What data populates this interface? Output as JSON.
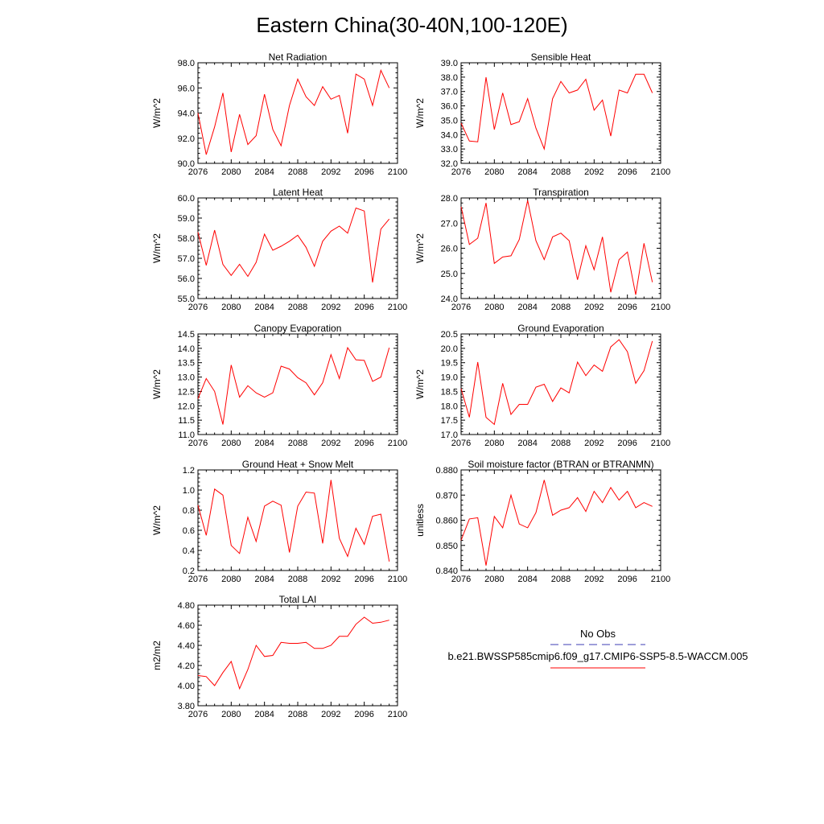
{
  "figure": {
    "title": "Eastern China(30-40N,100-120E)"
  },
  "colors": {
    "model_line": "#ff0000",
    "obs_line": "#3c3cb4",
    "axis": "#000000"
  },
  "legend": {
    "obs_label": "No Obs",
    "model_label": "b.e21.BWSSP585cmip6.f09_g17.CMIP6-SSP5-8.5-WACCM.005"
  },
  "chart_data": [
    {
      "type": "line",
      "title": "Net Radiation",
      "ylabel": "W/m^2",
      "xlim": [
        2076,
        2100
      ],
      "xticks": [
        "2076",
        "2080",
        "2084",
        "2088",
        "2092",
        "2096",
        "2100"
      ],
      "ylim": [
        90,
        98
      ],
      "yticks": [
        "90.0",
        "92.0",
        "94.0",
        "96.0",
        "98.0"
      ],
      "x": [
        2076,
        2077,
        2078,
        2079,
        2080,
        2081,
        2082,
        2083,
        2084,
        2085,
        2086,
        2087,
        2088,
        2089,
        2090,
        2091,
        2092,
        2093,
        2094,
        2095,
        2096,
        2097,
        2098,
        2099
      ],
      "series": [
        {
          "name": "b.e21.BWSSP585cmip6.f09_g17.CMIP6-SSP5-8.5-WACCM.005",
          "values": [
            94.0,
            90.7,
            92.9,
            95.6,
            90.9,
            93.9,
            91.5,
            92.2,
            95.5,
            92.7,
            91.4,
            94.6,
            96.7,
            95.3,
            94.6,
            96.1,
            95.1,
            95.4,
            92.4,
            97.1,
            96.7,
            94.6,
            97.4,
            96.0
          ]
        }
      ]
    },
    {
      "type": "line",
      "title": "Sensible Heat",
      "ylabel": "W/m^2",
      "xlim": [
        2076,
        2100
      ],
      "xticks": [
        "2076",
        "2080",
        "2084",
        "2088",
        "2092",
        "2096",
        "2100"
      ],
      "ylim": [
        32,
        39
      ],
      "yticks": [
        "32.0",
        "33.0",
        "34.0",
        "35.0",
        "36.0",
        "37.0",
        "38.0",
        "39.0"
      ],
      "x": [
        2076,
        2077,
        2078,
        2079,
        2080,
        2081,
        2082,
        2083,
        2084,
        2085,
        2086,
        2087,
        2088,
        2089,
        2090,
        2091,
        2092,
        2093,
        2094,
        2095,
        2096,
        2097,
        2098,
        2099
      ],
      "series": [
        {
          "name": "b.e21.BWSSP585cmip6.f09_g17.CMIP6-SSP5-8.5-WACCM.005",
          "values": [
            34.8,
            33.55,
            33.5,
            38.0,
            34.35,
            36.9,
            34.7,
            34.9,
            36.5,
            34.45,
            33.0,
            36.5,
            37.7,
            36.9,
            37.1,
            37.85,
            35.7,
            36.4,
            33.9,
            37.1,
            36.9,
            38.2,
            38.2,
            36.9
          ]
        }
      ]
    },
    {
      "type": "line",
      "title": "Latent Heat",
      "ylabel": "W/m^2",
      "xlim": [
        2076,
        2100
      ],
      "xticks": [
        "2076",
        "2080",
        "2084",
        "2088",
        "2092",
        "2096",
        "2100"
      ],
      "ylim": [
        55,
        60
      ],
      "yticks": [
        "55.0",
        "56.0",
        "57.0",
        "58.0",
        "59.0",
        "60.0"
      ],
      "x": [
        2076,
        2077,
        2078,
        2079,
        2080,
        2081,
        2082,
        2083,
        2084,
        2085,
        2086,
        2087,
        2088,
        2089,
        2090,
        2091,
        2092,
        2093,
        2094,
        2095,
        2096,
        2097,
        2098,
        2099
      ],
      "series": [
        {
          "name": "b.e21.BWSSP585cmip6.f09_g17.CMIP6-SSP5-8.5-WACCM.005",
          "values": [
            58.3,
            56.65,
            58.4,
            56.7,
            56.15,
            56.7,
            56.1,
            56.8,
            58.2,
            57.4,
            57.6,
            57.85,
            58.15,
            57.55,
            56.6,
            57.85,
            58.35,
            58.6,
            58.25,
            59.5,
            59.35,
            55.8,
            58.45,
            58.95
          ]
        }
      ]
    },
    {
      "type": "line",
      "title": "Transpiration",
      "ylabel": "W/m^2",
      "xlim": [
        2076,
        2100
      ],
      "xticks": [
        "2076",
        "2080",
        "2084",
        "2088",
        "2092",
        "2096",
        "2100"
      ],
      "ylim": [
        24,
        28
      ],
      "yticks": [
        "24.0",
        "25.0",
        "26.0",
        "27.0",
        "28.0"
      ],
      "x": [
        2076,
        2077,
        2078,
        2079,
        2080,
        2081,
        2082,
        2083,
        2084,
        2085,
        2086,
        2087,
        2088,
        2089,
        2090,
        2091,
        2092,
        2093,
        2094,
        2095,
        2096,
        2097,
        2098,
        2099
      ],
      "series": [
        {
          "name": "b.e21.BWSSP585cmip6.f09_g17.CMIP6-SSP5-8.5-WACCM.005",
          "values": [
            27.65,
            26.15,
            26.4,
            27.8,
            25.4,
            25.65,
            25.7,
            26.35,
            27.9,
            26.3,
            25.55,
            26.45,
            26.6,
            26.3,
            24.75,
            26.1,
            25.15,
            26.45,
            24.25,
            25.55,
            25.85,
            24.15,
            26.2,
            24.65
          ]
        }
      ]
    },
    {
      "type": "line",
      "title": "Canopy Evaporation",
      "ylabel": "W/m^2",
      "xlim": [
        2076,
        2100
      ],
      "xticks": [
        "2076",
        "2080",
        "2084",
        "2088",
        "2092",
        "2096",
        "2100"
      ],
      "ylim": [
        11,
        14.5
      ],
      "yticks": [
        "11.0",
        "11.5",
        "12.0",
        "12.5",
        "13.0",
        "13.5",
        "14.0",
        "14.5"
      ],
      "x": [
        2076,
        2077,
        2078,
        2079,
        2080,
        2081,
        2082,
        2083,
        2084,
        2085,
        2086,
        2087,
        2088,
        2089,
        2090,
        2091,
        2092,
        2093,
        2094,
        2095,
        2096,
        2097,
        2098,
        2099
      ],
      "series": [
        {
          "name": "b.e21.BWSSP585cmip6.f09_g17.CMIP6-SSP5-8.5-WACCM.005",
          "values": [
            12.25,
            12.95,
            12.5,
            11.35,
            13.42,
            12.3,
            12.7,
            12.45,
            12.3,
            12.45,
            13.38,
            13.28,
            12.98,
            12.8,
            12.38,
            12.8,
            13.78,
            12.95,
            14.02,
            13.6,
            13.58,
            12.85,
            13.0,
            14.02
          ]
        }
      ]
    },
    {
      "type": "line",
      "title": "Ground Evaporation",
      "ylabel": "W/m^2",
      "xlim": [
        2076,
        2100
      ],
      "xticks": [
        "2076",
        "2080",
        "2084",
        "2088",
        "2092",
        "2096",
        "2100"
      ],
      "ylim": [
        17,
        20.5
      ],
      "yticks": [
        "17.0",
        "17.5",
        "18.0",
        "18.5",
        "19.0",
        "19.5",
        "20.0",
        "20.5"
      ],
      "x": [
        2076,
        2077,
        2078,
        2079,
        2080,
        2081,
        2082,
        2083,
        2084,
        2085,
        2086,
        2087,
        2088,
        2089,
        2090,
        2091,
        2092,
        2093,
        2094,
        2095,
        2096,
        2097,
        2098,
        2099
      ],
      "series": [
        {
          "name": "b.e21.BWSSP585cmip6.f09_g17.CMIP6-SSP5-8.5-WACCM.005",
          "values": [
            18.6,
            17.6,
            19.52,
            17.6,
            17.35,
            18.78,
            17.7,
            18.05,
            18.05,
            18.65,
            18.75,
            18.15,
            18.62,
            18.45,
            19.52,
            19.05,
            19.42,
            19.2,
            20.05,
            20.3,
            19.88,
            18.78,
            19.22,
            20.25
          ]
        }
      ]
    },
    {
      "type": "line",
      "title": "Ground Heat + Snow Melt",
      "ylabel": "W/m^2",
      "xlim": [
        2076,
        2100
      ],
      "xticks": [
        "2076",
        "2080",
        "2084",
        "2088",
        "2092",
        "2096",
        "2100"
      ],
      "ylim": [
        0.2,
        1.2
      ],
      "yticks": [
        "0.2",
        "0.4",
        "0.6",
        "0.8",
        "1.0",
        "1.2"
      ],
      "x": [
        2076,
        2077,
        2078,
        2079,
        2080,
        2081,
        2082,
        2083,
        2084,
        2085,
        2086,
        2087,
        2088,
        2089,
        2090,
        2091,
        2092,
        2093,
        2094,
        2095,
        2096,
        2097,
        2098,
        2099
      ],
      "series": [
        {
          "name": "b.e21.BWSSP585cmip6.f09_g17.CMIP6-SSP5-8.5-WACCM.005",
          "values": [
            0.85,
            0.55,
            1.01,
            0.95,
            0.45,
            0.37,
            0.73,
            0.49,
            0.84,
            0.89,
            0.85,
            0.38,
            0.84,
            0.98,
            0.97,
            0.47,
            1.1,
            0.52,
            0.34,
            0.62,
            0.46,
            0.74,
            0.76,
            0.29
          ]
        }
      ]
    },
    {
      "type": "line",
      "title": "Soil moisture factor (BTRAN or BTRANMN)",
      "ylabel": "unitless",
      "xlim": [
        2076,
        2100
      ],
      "xticks": [
        "2076",
        "2080",
        "2084",
        "2088",
        "2092",
        "2096",
        "2100"
      ],
      "ylim": [
        0.84,
        0.88
      ],
      "yticks": [
        "0.840",
        "0.850",
        "0.860",
        "0.870",
        "0.880"
      ],
      "x": [
        2076,
        2077,
        2078,
        2079,
        2080,
        2081,
        2082,
        2083,
        2084,
        2085,
        2086,
        2087,
        2088,
        2089,
        2090,
        2091,
        2092,
        2093,
        2094,
        2095,
        2096,
        2097,
        2098,
        2099
      ],
      "series": [
        {
          "name": "b.e21.BWSSP585cmip6.f09_g17.CMIP6-SSP5-8.5-WACCM.005",
          "values": [
            0.852,
            0.8605,
            0.861,
            0.842,
            0.8615,
            0.857,
            0.87,
            0.8585,
            0.857,
            0.863,
            0.876,
            0.862,
            0.864,
            0.865,
            0.869,
            0.8635,
            0.8715,
            0.867,
            0.873,
            0.868,
            0.8715,
            0.865,
            0.867,
            0.8655
          ]
        }
      ]
    },
    {
      "type": "line",
      "title": "Total LAI",
      "ylabel": "m2/m2",
      "xlim": [
        2076,
        2100
      ],
      "xticks": [
        "2076",
        "2080",
        "2084",
        "2088",
        "2092",
        "2096",
        "2100"
      ],
      "ylim": [
        3.8,
        4.8
      ],
      "yticks": [
        "3.80",
        "4.00",
        "4.20",
        "4.40",
        "4.60",
        "4.80"
      ],
      "x": [
        2076,
        2077,
        2078,
        2079,
        2080,
        2081,
        2082,
        2083,
        2084,
        2085,
        2086,
        2087,
        2088,
        2089,
        2090,
        2091,
        2092,
        2093,
        2094,
        2095,
        2096,
        2097,
        2098,
        2099
      ],
      "series": [
        {
          "name": "b.e21.BWSSP585cmip6.f09_g17.CMIP6-SSP5-8.5-WACCM.005",
          "values": [
            4.1,
            4.09,
            4.0,
            4.13,
            4.24,
            3.97,
            4.16,
            4.4,
            4.29,
            4.3,
            4.43,
            4.42,
            4.42,
            4.43,
            4.37,
            4.37,
            4.4,
            4.49,
            4.49,
            4.61,
            4.68,
            4.62,
            4.63,
            4.65
          ]
        }
      ]
    }
  ]
}
